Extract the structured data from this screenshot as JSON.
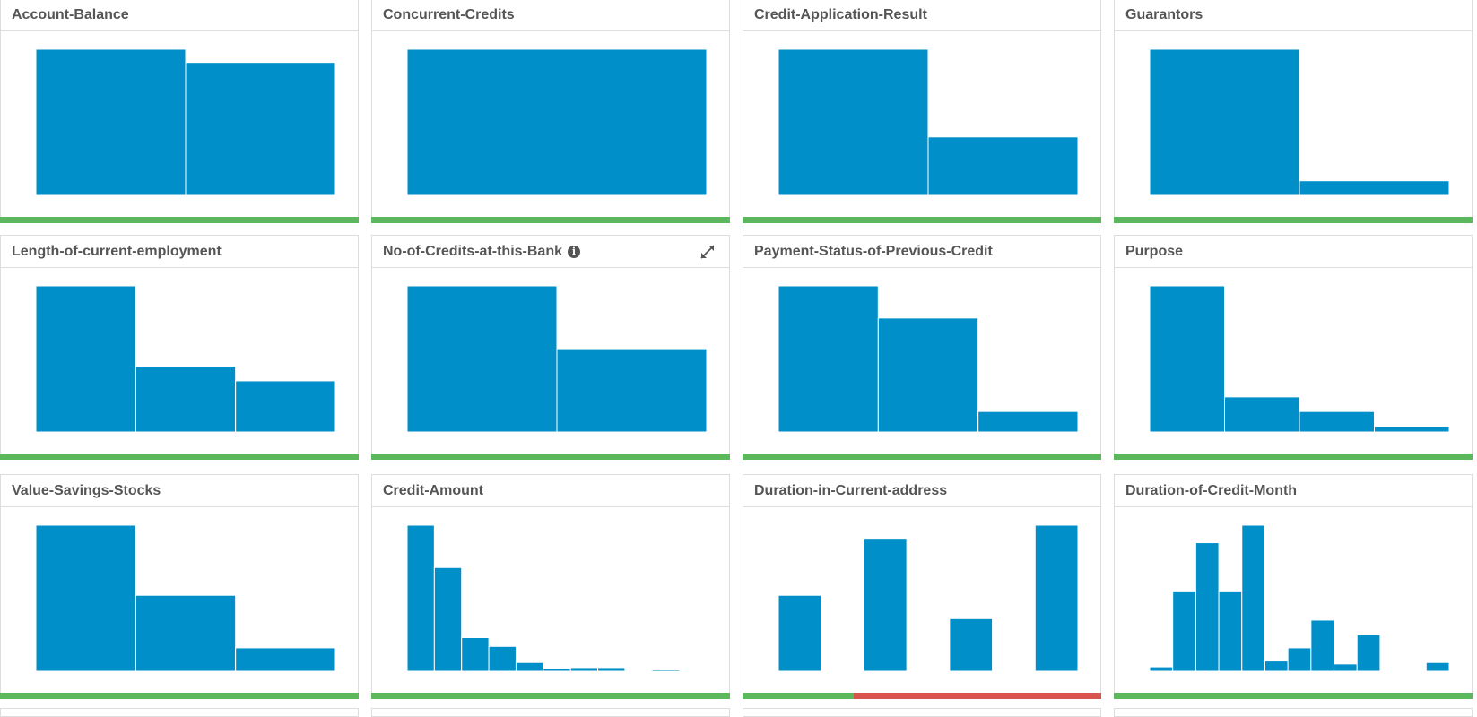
{
  "colors": {
    "bar": "#008fc8",
    "status_ok": "#5cb85c",
    "status_bad": "#d9534f"
  },
  "chart_data": [
    {
      "type": "bar",
      "title": "Account-Balance",
      "values": [
        100,
        91
      ],
      "status": [
        {
          "color": "#5cb85c",
          "fraction": 1
        }
      ]
    },
    {
      "type": "bar",
      "title": "Concurrent-Credits",
      "values": [
        100
      ],
      "status": [
        {
          "color": "#5cb85c",
          "fraction": 1
        }
      ]
    },
    {
      "type": "bar",
      "title": "Credit-Application-Result",
      "values": [
        100,
        40
      ],
      "status": [
        {
          "color": "#5cb85c",
          "fraction": 1
        }
      ]
    },
    {
      "type": "bar",
      "title": "Guarantors",
      "values": [
        100,
        10
      ],
      "status": [
        {
          "color": "#5cb85c",
          "fraction": 1
        }
      ]
    },
    {
      "type": "bar",
      "title": "Length-of-current-employment",
      "values": [
        100,
        45,
        35
      ],
      "status": [
        {
          "color": "#5cb85c",
          "fraction": 1
        }
      ]
    },
    {
      "type": "bar",
      "title": "No-of-Credits-at-this-Bank",
      "values": [
        100,
        57
      ],
      "info": true,
      "expand": true,
      "status": [
        {
          "color": "#5cb85c",
          "fraction": 1
        }
      ]
    },
    {
      "type": "bar",
      "title": "Payment-Status-of-Previous-Credit",
      "values": [
        100,
        78,
        14
      ],
      "status": [
        {
          "color": "#5cb85c",
          "fraction": 1
        }
      ]
    },
    {
      "type": "bar",
      "title": "Purpose",
      "values": [
        100,
        24,
        14,
        4
      ],
      "status": [
        {
          "color": "#5cb85c",
          "fraction": 1
        }
      ]
    },
    {
      "type": "bar",
      "title": "Value-Savings-Stocks",
      "values": [
        100,
        52,
        16
      ],
      "status": [
        {
          "color": "#5cb85c",
          "fraction": 1
        }
      ]
    },
    {
      "type": "bar",
      "title": "Credit-Amount",
      "values": [
        100,
        71,
        23,
        17,
        6,
        2,
        2.5,
        2.5,
        0,
        0.5,
        0
      ],
      "status": [
        {
          "color": "#5cb85c",
          "fraction": 1
        }
      ]
    },
    {
      "type": "bar",
      "title": "Duration-in-Current-address",
      "values": [
        52,
        0,
        91,
        0,
        36,
        0,
        100
      ],
      "status": [
        {
          "color": "#5cb85c",
          "fraction": 0.31
        },
        {
          "color": "#d9534f",
          "fraction": 0.69
        }
      ]
    },
    {
      "type": "bar",
      "title": "Duration-of-Credit-Month",
      "values": [
        3,
        55,
        88,
        55,
        100,
        7,
        16,
        35,
        5,
        25,
        0,
        0,
        6
      ],
      "status": [
        {
          "color": "#5cb85c",
          "fraction": 1
        }
      ]
    }
  ]
}
